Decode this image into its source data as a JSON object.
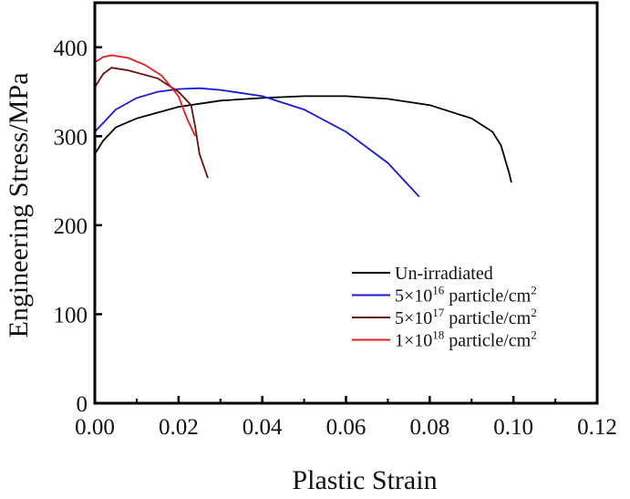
{
  "chart_data": {
    "type": "line",
    "title": "",
    "xlabel": "Plastic Strain",
    "ylabel": "Engineering Stress/MPa",
    "xlim": [
      0,
      0.12
    ],
    "ylim": [
      0,
      450
    ],
    "xticks": [
      "0.00",
      "0.02",
      "0.04",
      "0.06",
      "0.08",
      "0.10",
      "0.12"
    ],
    "xtick_values": [
      0,
      0.02,
      0.04,
      0.06,
      0.08,
      0.1,
      0.12
    ],
    "yticks": [
      "0",
      "100",
      "200",
      "300",
      "400"
    ],
    "ytick_values": [
      0,
      100,
      200,
      300,
      400
    ],
    "grid": false,
    "legend_position": "bottom-right",
    "series": [
      {
        "name": "Un-irradiated",
        "legend_main": "Un-irradiated",
        "legend_exp": "",
        "legend_tail": "",
        "color": "#000000",
        "x": [
          0,
          0.002,
          0.005,
          0.01,
          0.02,
          0.03,
          0.04,
          0.05,
          0.06,
          0.07,
          0.08,
          0.09,
          0.095,
          0.097,
          0.099,
          0.0995
        ],
        "y": [
          280,
          295,
          310,
          320,
          333,
          340,
          343,
          345,
          345,
          342,
          335,
          320,
          305,
          290,
          258,
          248
        ]
      },
      {
        "name": "5×10^16 particle/cm^2",
        "legend_main": "5×10",
        "legend_exp": "16",
        "legend_tail": " particle/cm",
        "color": "#1a1ad0",
        "x": [
          0,
          0.005,
          0.01,
          0.015,
          0.02,
          0.025,
          0.03,
          0.04,
          0.05,
          0.06,
          0.07,
          0.0775
        ],
        "y": [
          305,
          330,
          343,
          350,
          353,
          354,
          352,
          345,
          330,
          305,
          270,
          232
        ]
      },
      {
        "name": "5×10^17 particle/cm^2",
        "legend_main": "5×10",
        "legend_exp": "17",
        "legend_tail": " particle/cm",
        "color": "#6b1010",
        "x": [
          0,
          0.002,
          0.004,
          0.008,
          0.015,
          0.02,
          0.023,
          0.024,
          0.025,
          0.027
        ],
        "y": [
          355,
          370,
          377,
          374,
          365,
          350,
          335,
          310,
          280,
          253
        ]
      },
      {
        "name": "1×10^18 particle/cm^2",
        "legend_main": "1×10",
        "legend_exp": "18",
        "legend_tail": " particle/cm",
        "color": "#e02020",
        "x": [
          0,
          0.002,
          0.004,
          0.008,
          0.012,
          0.016,
          0.02,
          0.022,
          0.024
        ],
        "y": [
          383,
          389,
          391,
          388,
          380,
          368,
          345,
          320,
          300
        ]
      }
    ]
  }
}
